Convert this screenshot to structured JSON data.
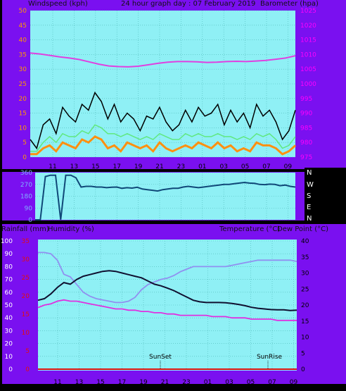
{
  "panel1": {
    "left_title": "Windspeed (kph)",
    "center_title": "24 hour graph day : 07 February 2019",
    "right_title": "Barometer (hpa)",
    "left_ticks": [
      "0",
      "5",
      "10",
      "15",
      "20",
      "25",
      "30",
      "35",
      "40",
      "45",
      "50"
    ],
    "right_ticks": [
      "975",
      "980",
      "985",
      "990",
      "995",
      "1000",
      "1005",
      "1010",
      "1015",
      "1020",
      "1025"
    ],
    "x_ticks": [
      "11",
      "13",
      "15",
      "17",
      "19",
      "21",
      "23",
      "01",
      "03",
      "05",
      "07",
      "09"
    ]
  },
  "panel2": {
    "left_ticks": [
      "0",
      "90",
      "180",
      "270",
      "360"
    ],
    "compass": [
      "N",
      "W",
      "S",
      "E",
      "N"
    ]
  },
  "panel3": {
    "left_title": "Rainfall (mm)",
    "left_title2": "Humidity (%)",
    "right_title": "Temperature (°C)",
    "right_title2": "Dew Point (°C)",
    "humidity_ticks": [
      "0",
      "10",
      "20",
      "30",
      "40",
      "50",
      "60",
      "70",
      "80",
      "90",
      "100"
    ],
    "rain_ticks": [
      "0",
      "5",
      "10",
      "15",
      "20",
      "25",
      "30",
      "35"
    ],
    "temp_ticks": [
      "0",
      "5",
      "10",
      "15",
      "20",
      "25",
      "30",
      "35",
      "40"
    ],
    "x_ticks": [
      "11",
      "13",
      "15",
      "17",
      "19",
      "21",
      "23",
      "01",
      "03",
      "05",
      "07",
      "09"
    ],
    "sunset_label": "SunSet",
    "sunrise_label": "SunRise"
  },
  "colors": {
    "background": "#7a10f0",
    "plot": "#8ff0f5",
    "grid": "#4fb8b8",
    "windspeed": "#000000",
    "gust": "#ff9010",
    "wind_avg": "#60e880",
    "barometer": "#e040e0",
    "wind_direction": "#104878",
    "temperature": "#101030",
    "humidity": "#9090f0",
    "dew_point": "#e030e0",
    "rainfall": "#e01010",
    "left_axis_text": "#ff9900",
    "right_axis_text": "#ff00ff"
  },
  "chart_data": [
    {
      "type": "line",
      "x_ticks": [
        "11",
        "13",
        "15",
        "17",
        "19",
        "21",
        "23",
        "01",
        "03",
        "05",
        "07",
        "09"
      ],
      "ylim_left": [
        0,
        50
      ],
      "ylim_right": [
        975,
        1025
      ],
      "series": [
        {
          "axis": "right",
          "values": [
            1010.5,
            1010.2,
            1009.7,
            1009.2,
            1008.8,
            1008.3,
            1007.5,
            1006.7,
            1006.1,
            1005.9,
            1005.8,
            1006.0,
            1006.5,
            1007.0,
            1007.4,
            1007.6,
            1007.6,
            1007.5,
            1007.3,
            1007.4,
            1007.6,
            1007.7,
            1007.6,
            1007.8,
            1008.0,
            1008.4,
            1008.8,
            1009.6
          ]
        },
        {
          "axis": "left",
          "values": [
            6,
            3,
            11,
            13,
            8,
            17,
            14,
            12,
            18,
            16,
            22,
            19,
            13,
            18,
            12,
            15,
            13,
            9,
            14,
            13,
            17,
            12,
            9,
            11,
            16,
            12,
            17,
            14,
            15,
            18,
            11,
            16,
            12,
            15,
            10,
            18,
            14,
            16,
            12,
            6,
            9,
            16
          ]
        },
        {
          "axis": "left",
          "values": [
            1,
            1,
            3,
            4,
            2,
            5,
            4,
            3,
            6,
            5,
            7,
            6,
            3,
            4,
            2,
            5,
            4,
            3,
            4,
            2,
            5,
            3,
            2,
            3,
            4,
            3,
            5,
            4,
            3,
            5,
            3,
            4,
            2,
            3,
            2,
            5,
            4,
            4,
            3,
            1,
            2,
            4
          ]
        },
        {
          "axis": "left",
          "values": [
            2,
            2,
            5,
            7,
            5,
            8,
            7,
            7,
            9,
            8,
            11,
            10,
            8,
            8,
            7,
            8,
            7,
            6,
            7,
            6,
            8,
            7,
            6,
            6,
            8,
            7,
            8,
            7,
            7,
            8,
            7,
            7,
            6,
            7,
            6,
            8,
            7,
            8,
            6,
            3,
            4,
            7
          ]
        }
      ]
    },
    {
      "type": "line",
      "ylim": [
        0,
        360
      ],
      "series": [
        {
          "values": [
            0,
            0,
            330,
            340,
            340,
            0,
            340,
            340,
            320,
            250,
            255,
            255,
            250,
            250,
            245,
            248,
            250,
            240,
            245,
            242,
            248,
            235,
            230,
            225,
            220,
            230,
            235,
            240,
            240,
            250,
            255,
            250,
            245,
            250,
            255,
            260,
            265,
            270,
            270,
            275,
            280,
            285,
            280,
            278,
            270,
            268,
            272,
            270,
            260,
            265,
            255,
            250
          ]
        }
      ]
    },
    {
      "type": "line",
      "x_ticks": [
        "11",
        "13",
        "15",
        "17",
        "19",
        "21",
        "23",
        "01",
        "03",
        "05",
        "07",
        "09"
      ],
      "ylim_humidity": [
        0,
        100
      ],
      "ylim_temperature": [
        0,
        40
      ],
      "ylim_rain": [
        0,
        35
      ],
      "series": [
        {
          "axis": "temperature",
          "values": [
            21.5,
            22,
            23.5,
            25.5,
            27,
            26.5,
            28,
            29,
            29.5,
            30,
            30.5,
            30.7,
            30.5,
            30,
            29.5,
            29,
            28.5,
            27.5,
            26.5,
            26,
            25.3,
            24.5,
            23.5,
            22.5,
            21.5,
            21,
            20.8,
            20.8,
            20.8,
            20.7,
            20.5,
            20.2,
            19.8,
            19.3,
            19,
            18.8,
            18.6,
            18.5,
            18.5,
            18.3,
            18.4
          ]
        },
        {
          "axis": "humidity",
          "values": [
            91,
            91,
            90,
            85,
            74,
            72,
            66,
            60,
            57,
            55,
            54,
            53,
            52,
            52,
            53,
            56,
            62,
            66,
            68,
            70,
            71,
            73,
            76,
            78,
            80,
            80,
            80,
            80,
            80,
            80,
            81,
            82,
            83,
            84,
            85,
            85,
            85,
            85,
            85,
            85,
            84
          ]
        },
        {
          "axis": "humidity",
          "values": [
            48,
            50,
            51,
            53,
            54,
            53,
            53,
            52,
            51,
            50,
            49,
            48,
            47,
            47,
            46,
            46,
            45,
            45,
            44,
            44,
            43,
            43,
            42,
            42,
            42,
            42,
            42,
            41,
            41,
            41,
            40,
            40,
            40,
            39,
            39,
            39,
            39,
            38,
            38,
            38,
            38
          ]
        },
        {
          "axis": "rain",
          "values": [
            0,
            0,
            0,
            0,
            0,
            0,
            0,
            0,
            0,
            0,
            0,
            0
          ]
        }
      ]
    }
  ]
}
